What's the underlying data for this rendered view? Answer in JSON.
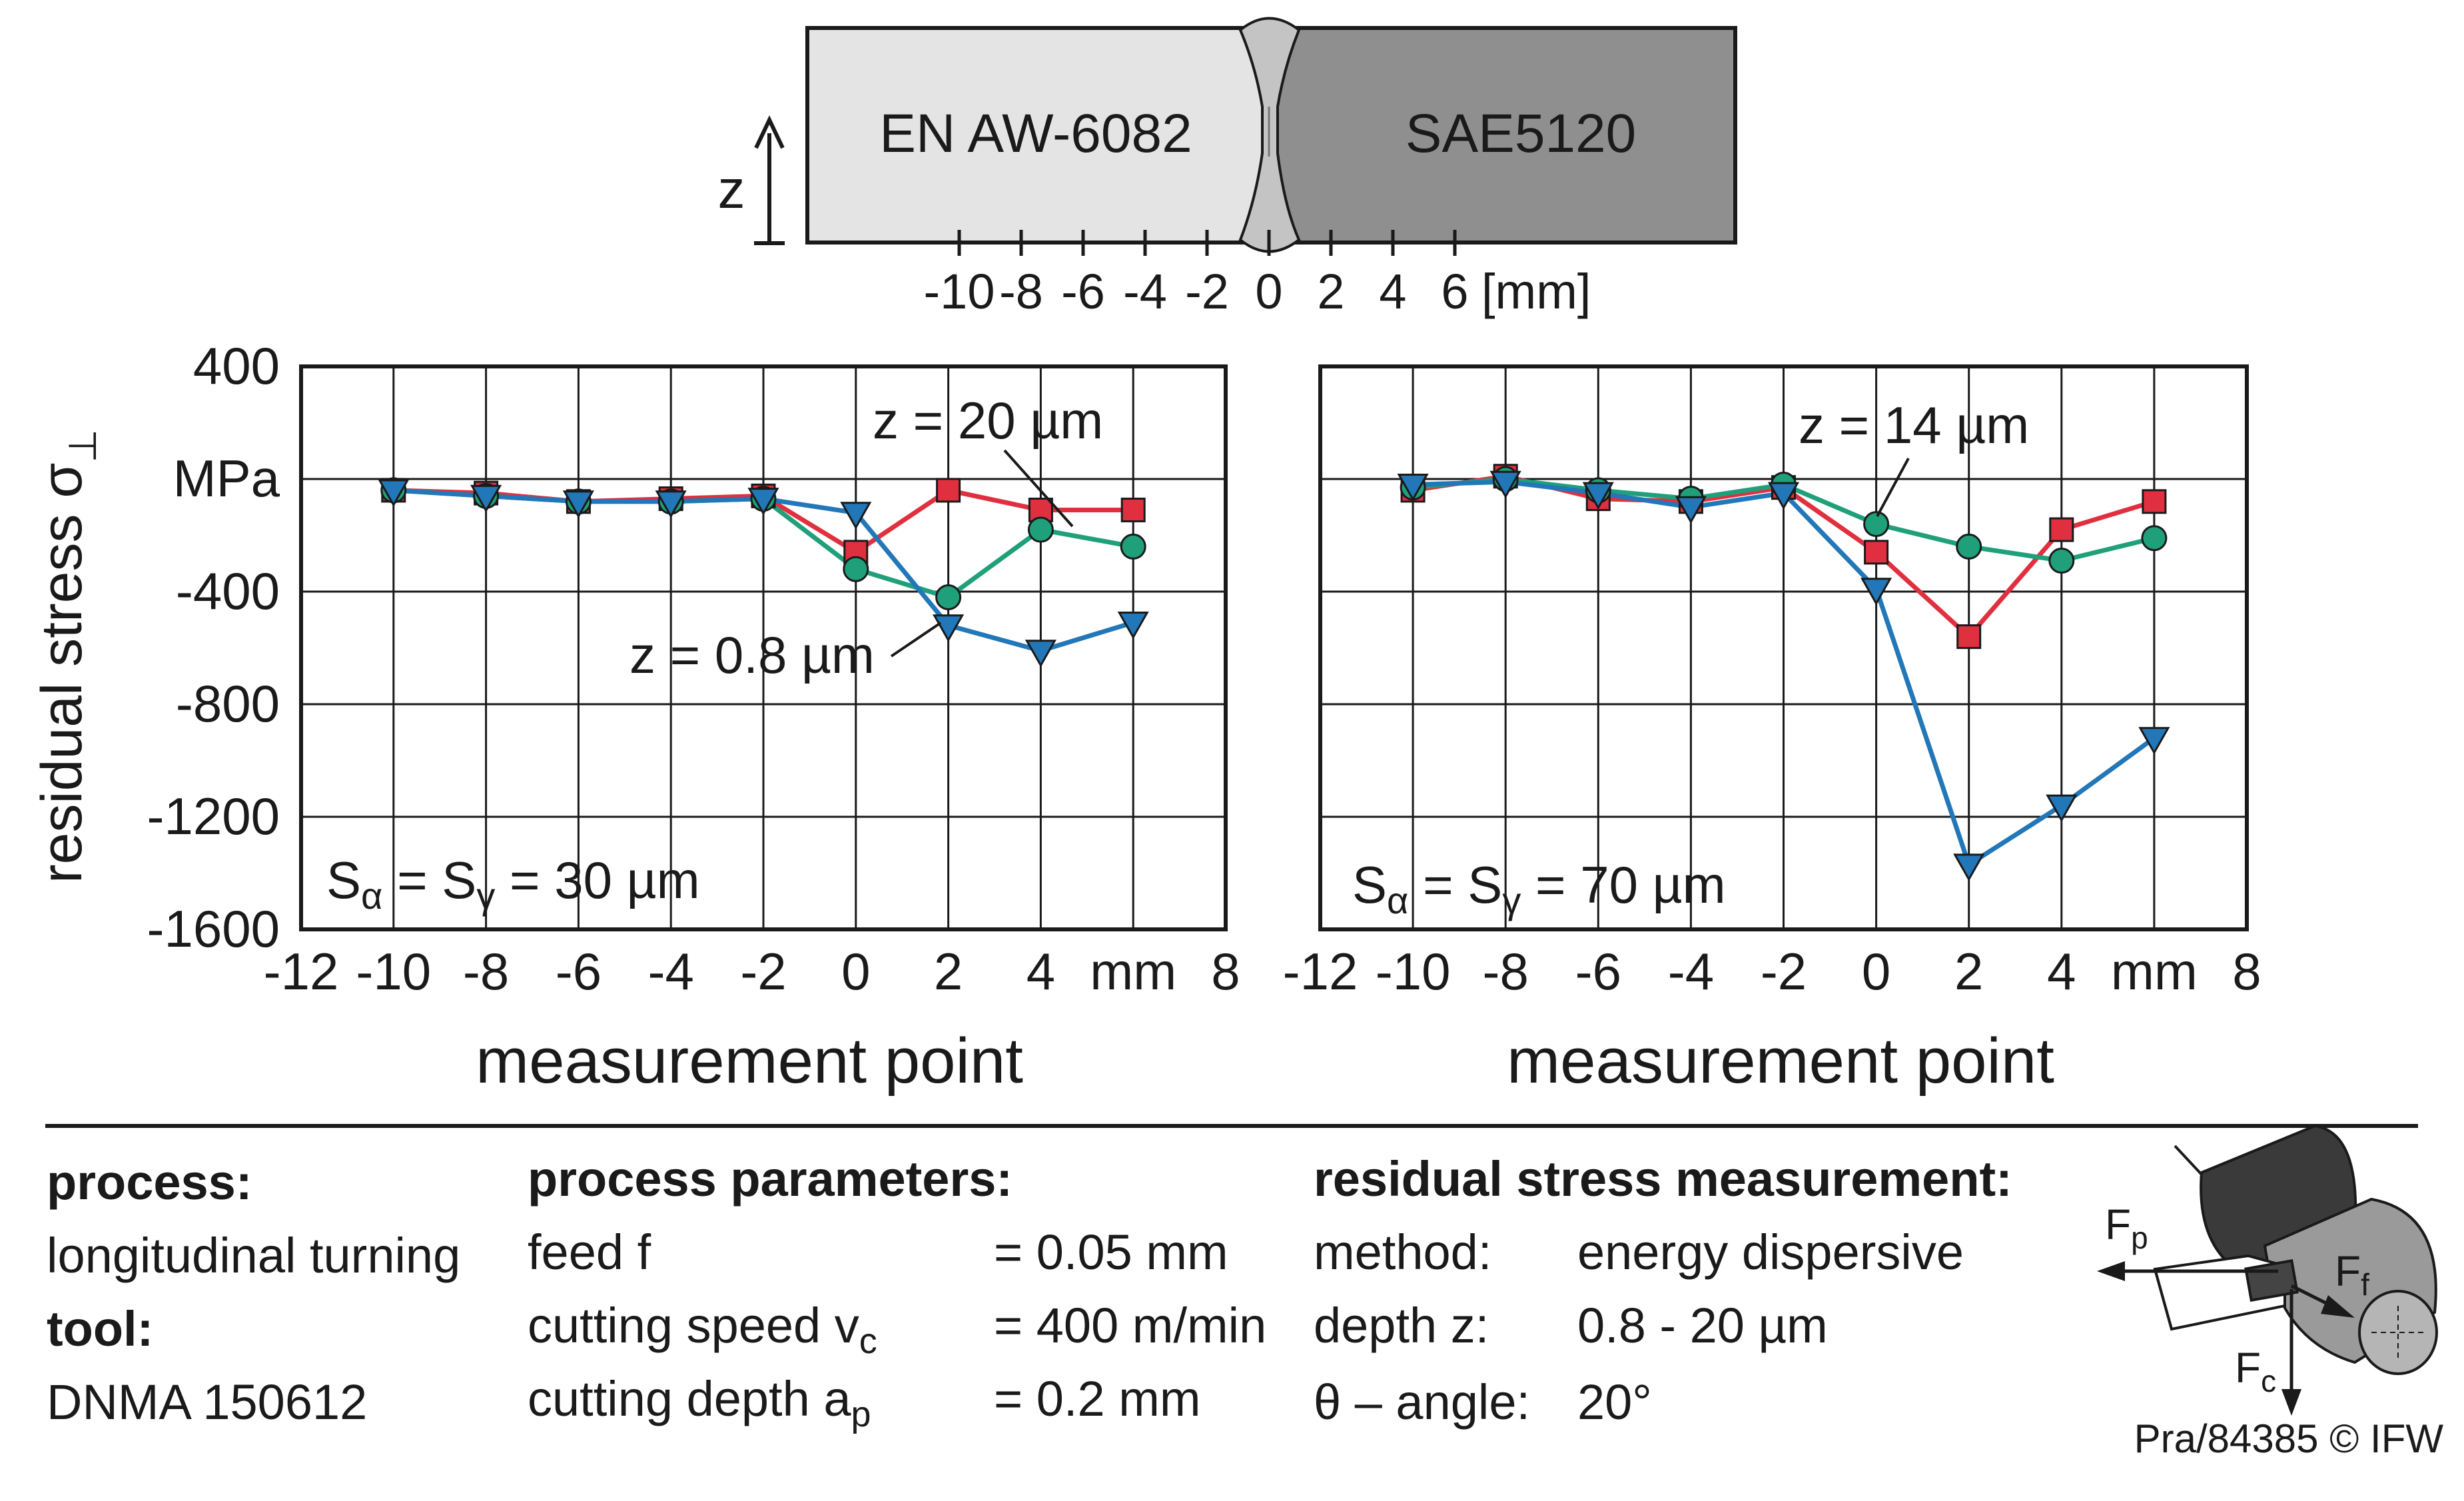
{
  "specimen": {
    "left_material": "EN AW-6082",
    "right_material": "SAE5120",
    "axis_label": "z",
    "scale_ticks": [
      "-10",
      "-8",
      "-6",
      "-4",
      "-2",
      "0",
      "2",
      "4",
      "6"
    ],
    "scale_unit": "[mm]"
  },
  "shared_axes": {
    "ylabel_main": "residual stress σ",
    "ylabel_sub": "⊥",
    "yunit": "MPa",
    "ytick_labels": [
      "400",
      "",
      "-400",
      "-800",
      "-1200",
      "-1600"
    ],
    "xtick_labels": [
      "-12",
      "-10",
      "-8",
      "-6",
      "-4",
      "-2",
      "0",
      "2",
      "4",
      "mm",
      "8"
    ],
    "xlabel": "measurement point"
  },
  "chart_data": [
    {
      "type": "line",
      "xlabel": "measurement point",
      "ylabel": "residual stress σ⊥ MPa",
      "xlim": [
        -12,
        8
      ],
      "ylim": [
        -1600,
        400
      ],
      "grid": true,
      "x": [
        -10,
        -8,
        -6,
        -4,
        -2,
        0,
        2,
        4,
        6
      ],
      "series": [
        {
          "name": "z = 20 µm",
          "color": "#e0303f",
          "marker": "square",
          "values": [
            -40,
            -50,
            -80,
            -70,
            -60,
            -260,
            -40,
            -110,
            -110
          ]
        },
        {
          "name": "z = 14 µm",
          "color": "#1fa07a",
          "marker": "circle",
          "values": [
            -40,
            -60,
            -80,
            -80,
            -70,
            -320,
            -420,
            -180,
            -240
          ]
        },
        {
          "name": "z = 0.8 µm",
          "color": "#2277b8",
          "marker": "triangle-down",
          "values": [
            -40,
            -60,
            -80,
            -80,
            -70,
            -120,
            -520,
            -610,
            -510
          ]
        }
      ],
      "annotations": [
        {
          "text": "z = 20 µm",
          "series": "z = 20 µm",
          "x": 2
        },
        {
          "text": "z = 0.8 µm",
          "series": "z = 0.8 µm",
          "x": 2
        }
      ],
      "inset_label": {
        "s": "S",
        "alpha": "α",
        "eq1": " = S",
        "gamma": "γ",
        "rest": " = 30 µm"
      }
    },
    {
      "type": "line",
      "xlabel": "measurement point",
      "ylabel": "residual stress σ⊥ MPa",
      "xlim": [
        -12,
        8
      ],
      "ylim": [
        -1600,
        400
      ],
      "grid": true,
      "x": [
        -10,
        -8,
        -6,
        -4,
        -2,
        0,
        2,
        4,
        6
      ],
      "series": [
        {
          "name": "z = 20 µm",
          "color": "#e0303f",
          "marker": "square",
          "values": [
            -40,
            10,
            -70,
            -80,
            -30,
            -260,
            -560,
            -180,
            -80
          ]
        },
        {
          "name": "z = 14 µm",
          "color": "#1fa07a",
          "marker": "circle",
          "values": [
            -30,
            0,
            -40,
            -70,
            -20,
            -160,
            -240,
            -290,
            -210
          ]
        },
        {
          "name": "z = 0.8 µm",
          "color": "#2277b8",
          "marker": "triangle-down",
          "values": [
            -20,
            -10,
            -50,
            -100,
            -50,
            -390,
            -1370,
            -1160,
            -920
          ]
        }
      ],
      "annotations": [
        {
          "text": "z = 14 µm",
          "series": "z = 14 µm",
          "x": 0
        }
      ],
      "inset_label": {
        "s": "S",
        "alpha": "α",
        "eq1": " = S",
        "gamma": "γ",
        "rest": " = 70 µm"
      }
    }
  ],
  "info": {
    "process_heading": "process:",
    "process_value": "longitudinal turning",
    "tool_heading": "tool:",
    "tool_value": "DNMA 150612",
    "params_heading": "process parameters:",
    "params": [
      {
        "name": "feed f",
        "sub": "",
        "value": "= 0.05 mm"
      },
      {
        "name": "cutting speed v",
        "sub": "c",
        "value": "= 400 m/min"
      },
      {
        "name": "cutting depth a",
        "sub": "p",
        "value": "= 0.2 mm"
      }
    ],
    "measurement_heading": "residual stress measurement:",
    "measurement": [
      {
        "name": "method:",
        "value": "energy dispersive"
      },
      {
        "name": "depth z:",
        "value": "0.8 - 20 µm"
      },
      {
        "name": "θ – angle:",
        "value": "20°"
      }
    ],
    "forces": [
      {
        "main": "F",
        "sub": "p"
      },
      {
        "main": "F",
        "sub": "f"
      },
      {
        "main": "F",
        "sub": "c"
      }
    ],
    "credit": "Pra/84385 © IFW"
  }
}
